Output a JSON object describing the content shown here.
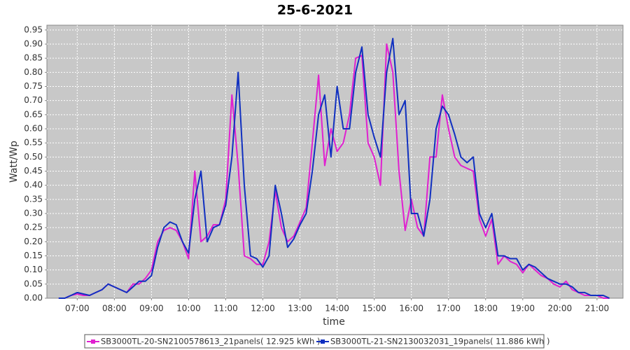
{
  "chart_data": {
    "type": "line",
    "title": "25-6-2021",
    "x_label": "time",
    "y_label": "Watt/Wp",
    "x": [
      "06:30",
      "06:40",
      "06:50",
      "07:00",
      "07:10",
      "07:20",
      "07:30",
      "07:40",
      "07:50",
      "08:00",
      "08:10",
      "08:20",
      "08:30",
      "08:40",
      "08:50",
      "09:00",
      "09:10",
      "09:20",
      "09:30",
      "09:40",
      "09:50",
      "10:00",
      "10:10",
      "10:20",
      "10:30",
      "10:40",
      "10:50",
      "11:00",
      "11:10",
      "11:20",
      "11:30",
      "11:40",
      "11:50",
      "12:00",
      "12:10",
      "12:20",
      "12:30",
      "12:40",
      "12:50",
      "13:00",
      "13:10",
      "13:20",
      "13:30",
      "13:40",
      "13:50",
      "14:00",
      "14:10",
      "14:20",
      "14:30",
      "14:40",
      "14:50",
      "15:00",
      "15:10",
      "15:20",
      "15:30",
      "15:40",
      "15:50",
      "16:00",
      "16:10",
      "16:20",
      "16:30",
      "16:40",
      "16:50",
      "17:00",
      "17:10",
      "17:20",
      "17:30",
      "17:40",
      "17:50",
      "18:00",
      "18:10",
      "18:20",
      "18:30",
      "18:40",
      "18:50",
      "19:00",
      "19:10",
      "19:20",
      "19:30",
      "19:40",
      "19:50",
      "20:00",
      "20:10",
      "20:20",
      "20:30",
      "20:40",
      "20:50",
      "21:00",
      "21:10",
      "21:20"
    ],
    "series": [
      {
        "name": "SB3000TL-20-SN2100578613_21panels( 12.925 kWh )",
        "color": "#e020d0",
        "values": [
          0,
          0,
          0.01,
          0.015,
          0.01,
          0.01,
          0.02,
          0.03,
          0.05,
          0.04,
          0.03,
          0.02,
          0.05,
          0.05,
          0.07,
          0.1,
          0.2,
          0.24,
          0.25,
          0.24,
          0.2,
          0.14,
          0.45,
          0.2,
          0.22,
          0.26,
          0.26,
          0.35,
          0.72,
          0.47,
          0.15,
          0.14,
          0.12,
          0.12,
          0.2,
          0.38,
          0.25,
          0.2,
          0.22,
          0.27,
          0.32,
          0.55,
          0.79,
          0.47,
          0.6,
          0.52,
          0.55,
          0.65,
          0.85,
          0.86,
          0.55,
          0.5,
          0.4,
          0.9,
          0.8,
          0.45,
          0.24,
          0.35,
          0.25,
          0.22,
          0.5,
          0.5,
          0.72,
          0.6,
          0.5,
          0.47,
          0.46,
          0.45,
          0.28,
          0.22,
          0.28,
          0.12,
          0.15,
          0.13,
          0.12,
          0.09,
          0.12,
          0.1,
          0.08,
          0.07,
          0.05,
          0.04,
          0.06,
          0.03,
          0.02,
          0.01,
          0.01,
          0.01,
          0,
          0
        ]
      },
      {
        "name": "SB3000TL-21-SN2130032031_19panels( 11.886 kWh )",
        "color": "#1030c0",
        "values": [
          0,
          0,
          0.01,
          0.02,
          0.015,
          0.01,
          0.02,
          0.03,
          0.05,
          0.04,
          0.03,
          0.02,
          0.04,
          0.06,
          0.06,
          0.08,
          0.18,
          0.25,
          0.27,
          0.26,
          0.2,
          0.16,
          0.35,
          0.45,
          0.2,
          0.25,
          0.26,
          0.33,
          0.5,
          0.8,
          0.4,
          0.15,
          0.14,
          0.11,
          0.15,
          0.4,
          0.3,
          0.18,
          0.21,
          0.26,
          0.3,
          0.45,
          0.65,
          0.72,
          0.5,
          0.75,
          0.6,
          0.6,
          0.8,
          0.89,
          0.65,
          0.57,
          0.5,
          0.8,
          0.92,
          0.65,
          0.7,
          0.3,
          0.3,
          0.22,
          0.35,
          0.6,
          0.68,
          0.65,
          0.58,
          0.5,
          0.48,
          0.5,
          0.3,
          0.25,
          0.3,
          0.15,
          0.15,
          0.14,
          0.14,
          0.1,
          0.12,
          0.11,
          0.09,
          0.07,
          0.06,
          0.05,
          0.05,
          0.04,
          0.02,
          0.02,
          0.01,
          0.01,
          0.01,
          0
        ]
      }
    ],
    "xlim": [
      "06:11",
      "21:42"
    ],
    "xticks": [
      "07:00",
      "08:00",
      "09:00",
      "10:00",
      "11:00",
      "12:00",
      "13:00",
      "14:00",
      "15:00",
      "16:00",
      "17:00",
      "18:00",
      "19:00",
      "20:00",
      "21:00"
    ],
    "ylim": [
      0,
      0.967
    ],
    "yticks": [
      {
        "value": 0,
        "label": "0.00"
      },
      {
        "value": 0.05,
        "label": "0.05"
      },
      {
        "value": 0.1,
        "label": "0.10"
      },
      {
        "value": 0.15,
        "label": "0.15"
      },
      {
        "value": 0.2,
        "label": "0.20"
      },
      {
        "value": 0.25,
        "label": "0.25"
      },
      {
        "value": 0.3,
        "label": "0.30"
      },
      {
        "value": 0.35,
        "label": "0.35"
      },
      {
        "value": 0.4,
        "label": "0.40"
      },
      {
        "value": 0.45,
        "label": "0.45"
      },
      {
        "value": 0.5,
        "label": "0.50"
      },
      {
        "value": 0.55,
        "label": "0.55"
      },
      {
        "value": 0.6,
        "label": "0.60"
      },
      {
        "value": 0.65,
        "label": "0.65"
      },
      {
        "value": 0.7,
        "label": "0.70"
      },
      {
        "value": 0.75,
        "label": "0.75"
      },
      {
        "value": 0.8,
        "label": "0.80"
      },
      {
        "value": 0.85,
        "label": "0.85"
      },
      {
        "value": 0.9,
        "label": "0.90"
      },
      {
        "value": 0.95,
        "label": "0.95"
      }
    ],
    "grid": true
  }
}
